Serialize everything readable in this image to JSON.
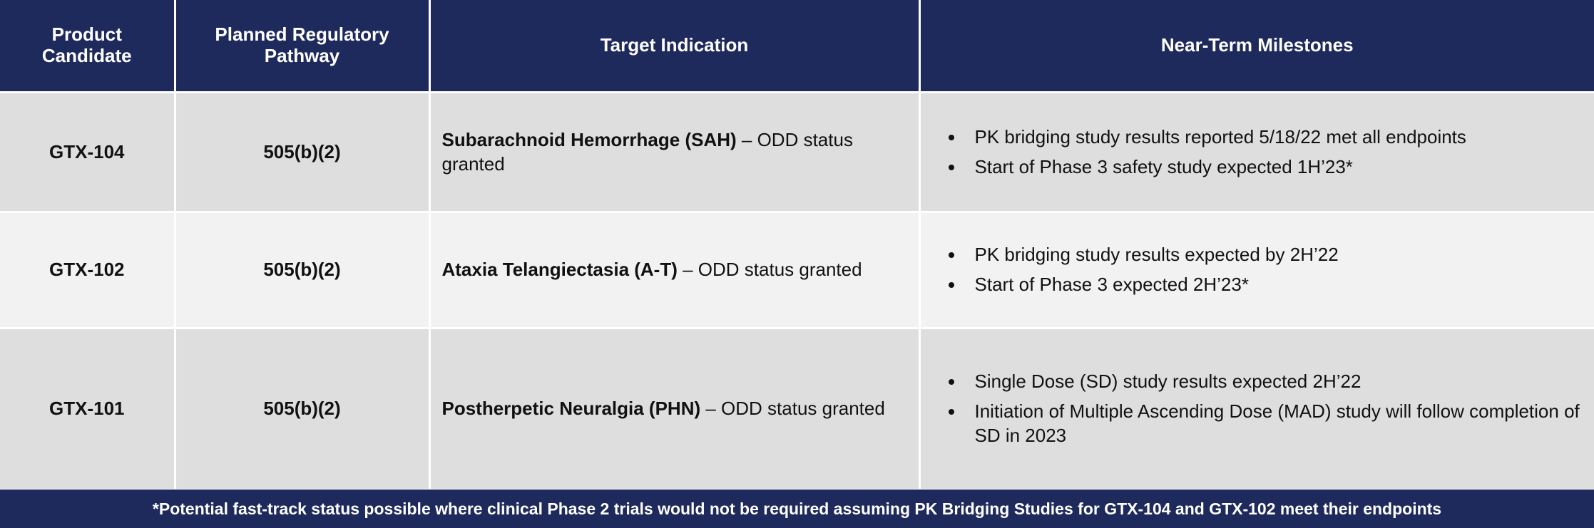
{
  "table": {
    "headers": [
      "Product Candidate",
      "Planned Regulatory Pathway",
      "Target Indication",
      "Near-Term Milestones"
    ],
    "rows": [
      {
        "candidate": "GTX-104",
        "pathway": "505(b)(2)",
        "indication": {
          "bold": "Subarachnoid Hemorrhage (SAH)",
          "rest": " – ODD status granted"
        },
        "milestones": [
          "PK bridging study results reported 5/18/22 met all endpoints",
          "Start of Phase 3 safety study expected 1H’23*"
        ]
      },
      {
        "candidate": "GTX-102",
        "pathway": "505(b)(2)",
        "indication": {
          "bold": "Ataxia Telangiectasia (A-T)",
          "rest": " – ODD status granted"
        },
        "milestones": [
          "PK bridging study results expected by 2H’22",
          "Start of Phase 3 expected 2H’23*"
        ]
      },
      {
        "candidate": "GTX-101",
        "pathway": "505(b)(2)",
        "indication": {
          "bold": "Postherpetic Neuralgia (PHN)",
          "rest": " – ODD status granted"
        },
        "milestones": [
          "Single Dose (SD) study results expected 2H’22",
          "Initiation of Multiple Ascending Dose (MAD) study will follow completion of SD in 2023"
        ]
      }
    ]
  },
  "footnote": "*Potential fast-track status possible where clinical Phase 2 trials would not be required assuming PK Bridging Studies for GTX-104 and GTX-102 meet their endpoints"
}
